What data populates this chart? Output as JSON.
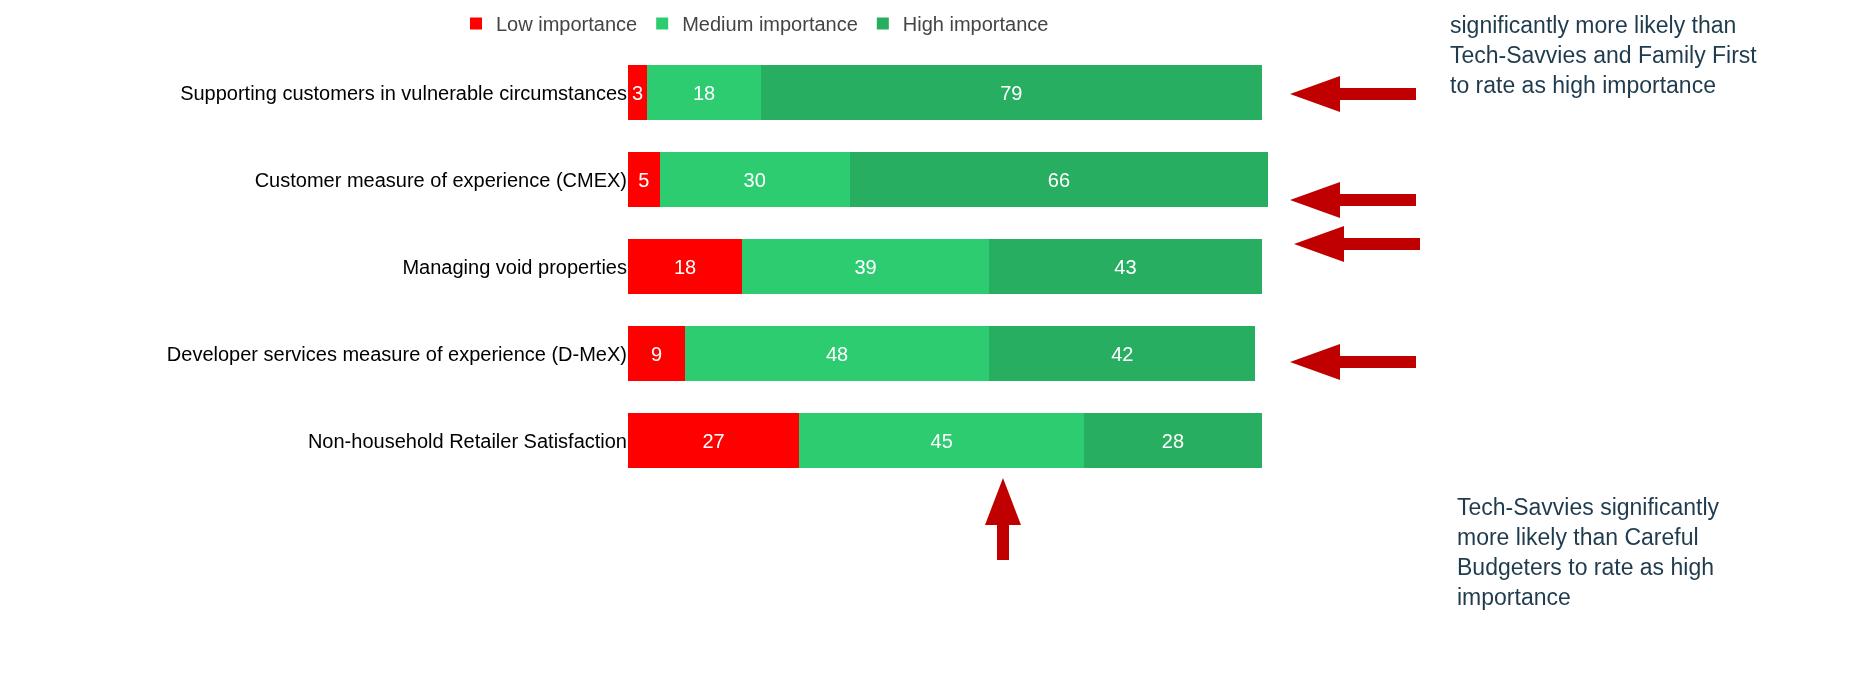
{
  "chart_data": {
    "type": "bar",
    "orientation": "horizontal",
    "stacked": true,
    "data_labels": true,
    "legend": "top",
    "categories": [
      "Supporting customers in vulnerable circumstances",
      "Customer measure of experience (CMEX)",
      "Managing void properties",
      "Developer services measure of experience (D-MeX)",
      "Non-household Retailer Satisfaction"
    ],
    "series": [
      {
        "name": "Low importance",
        "color": "#ff0000",
        "values": [
          3,
          5,
          18,
          9,
          27
        ]
      },
      {
        "name": "Medium importance",
        "color": "#2ecc71",
        "values": [
          18,
          30,
          39,
          48,
          45
        ]
      },
      {
        "name": "High importance",
        "color": "#27ae60",
        "values": [
          79,
          66,
          43,
          42,
          28
        ]
      }
    ],
    "annotations": [
      "significantly more likely than Tech-Savvies and Family First to rate as high importance",
      "Tech-Savvies significantly more likely than Careful Budgeters to rate as high importance"
    ]
  }
}
